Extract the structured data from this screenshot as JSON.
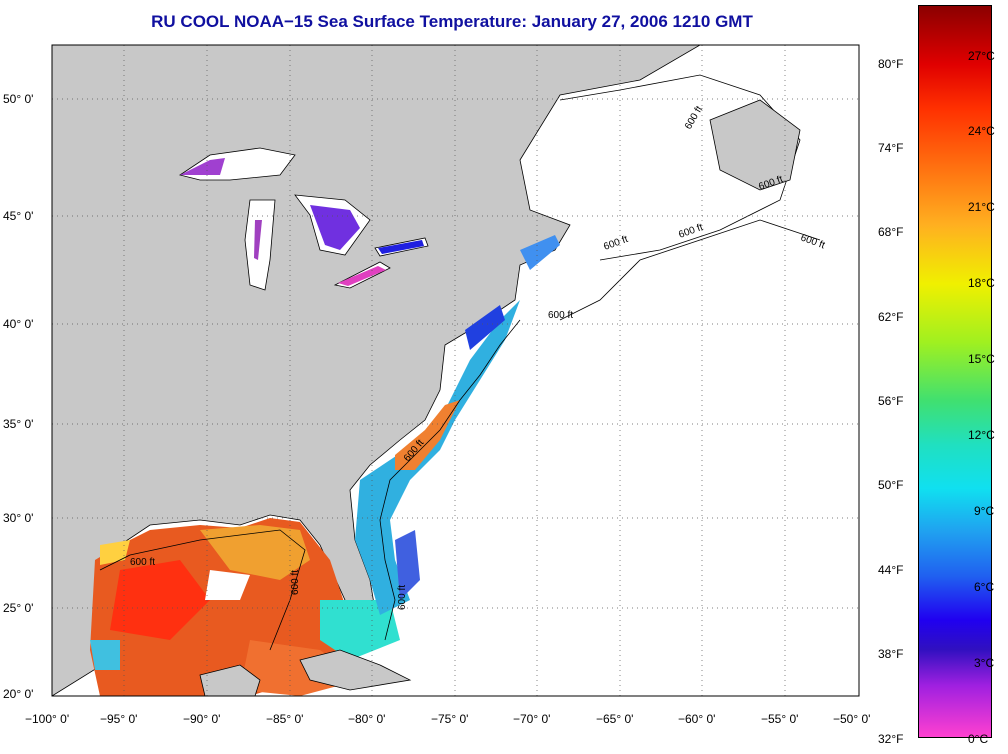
{
  "title": "RU COOL  NOAA−15  Sea Surface Temperature:  January 27, 2006 1210 GMT",
  "map": {
    "lon_range": [
      -100,
      -50
    ],
    "lat_range": [
      20,
      52.5
    ],
    "lon_ticks": [
      "−100° 0'",
      "−95° 0'",
      "−90° 0'",
      "−85° 0'",
      "−80° 0'",
      "−75° 0'",
      "−70° 0'",
      "−65° 0'",
      "−60° 0'",
      "−55° 0'",
      "−50° 0'"
    ],
    "lat_ticks": [
      "20° 0'",
      "25° 0'",
      "30° 0'",
      "35° 0'",
      "40° 0'",
      "45° 0'",
      "50° 0'"
    ],
    "contour_labels": [
      "600 ft",
      "600 ft",
      "600 ft",
      "600 ft",
      "600 ft",
      "600 ft",
      "600 ft",
      "600 ft",
      "600 ft",
      "600 ft"
    ],
    "land_color": "#c8c8c8",
    "ocean_nodata_color": "#ffffff"
  },
  "colorbar": {
    "fahrenheit_ticks": [
      "80°F",
      "74°F",
      "68°F",
      "62°F",
      "56°F",
      "50°F",
      "44°F",
      "38°F",
      "32°F"
    ],
    "celsius_ticks": [
      "27°C",
      "24°C",
      "21°C",
      "18°C",
      "15°C",
      "12°C",
      "9°C",
      "6°C",
      "3°C",
      "0°C"
    ],
    "range_c": [
      0,
      29
    ]
  }
}
